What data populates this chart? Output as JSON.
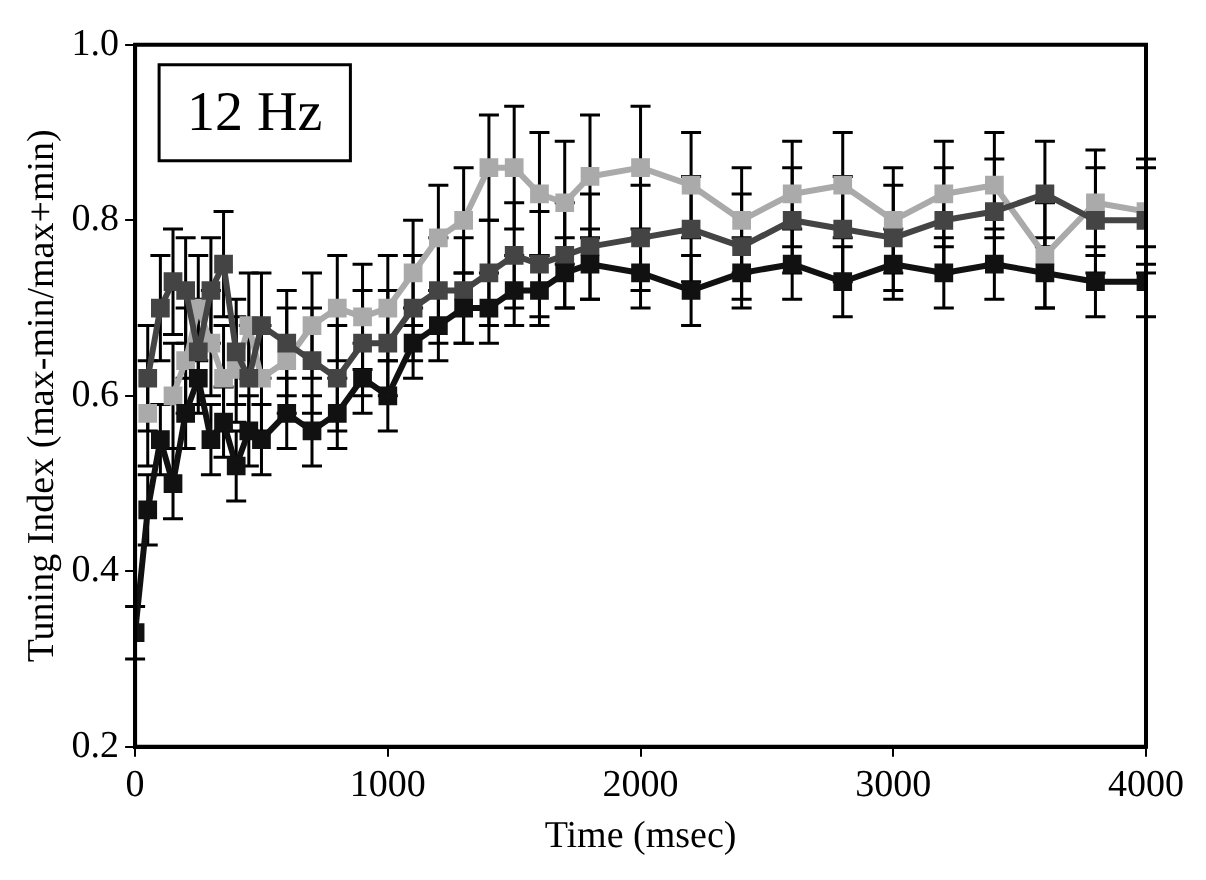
{
  "chart_data": {
    "type": "line",
    "xlabel": "Time (msec)",
    "ylabel": "Tuning Index (max-min/max+min)",
    "annotations": [
      "12 Hz"
    ],
    "x": [
      0,
      50,
      100,
      150,
      200,
      250,
      300,
      350,
      400,
      450,
      500,
      600,
      700,
      800,
      900,
      1000,
      1100,
      1200,
      1300,
      1400,
      1500,
      1600,
      1700,
      1800,
      2000,
      2200,
      2400,
      2600,
      2800,
      3000,
      3200,
      3400,
      3600,
      3800,
      4000
    ],
    "xlim": [
      0,
      4000
    ],
    "xticks": [
      0,
      1000,
      2000,
      3000,
      4000
    ],
    "ylim": [
      0.2,
      1.0
    ],
    "yticks": [
      0.2,
      0.4,
      0.6,
      0.8,
      {
        "value": 1.0,
        "label": "1.0"
      }
    ],
    "grid": false,
    "legend": false,
    "marker": "square",
    "line_style": "solid",
    "series": [
      {
        "color": "#111111",
        "values": [
          0.33,
          0.47,
          0.55,
          0.5,
          0.58,
          0.62,
          0.55,
          0.57,
          0.52,
          0.56,
          0.55,
          0.58,
          0.56,
          0.58,
          0.62,
          0.6,
          0.66,
          0.68,
          0.7,
          0.7,
          0.72,
          0.72,
          0.74,
          0.75,
          0.74,
          0.72,
          0.74,
          0.75,
          0.73,
          0.75,
          0.74,
          0.75,
          0.74,
          0.73,
          0.73
        ],
        "errors": [
          0.03,
          0.04,
          0.04,
          0.04,
          0.04,
          0.04,
          0.04,
          0.04,
          0.04,
          0.04,
          0.04,
          0.04,
          0.04,
          0.04,
          0.04,
          0.04,
          0.04,
          0.04,
          0.04,
          0.04,
          0.04,
          0.04,
          0.04,
          0.04,
          0.04,
          0.04,
          0.04,
          0.04,
          0.04,
          0.04,
          0.04,
          0.04,
          0.04,
          0.04,
          0.04
        ]
      },
      {
        "color": "#444444",
        "values": [
          null,
          0.62,
          0.7,
          0.73,
          0.72,
          0.65,
          0.72,
          0.75,
          0.65,
          0.62,
          0.68,
          0.66,
          0.64,
          0.62,
          0.66,
          0.66,
          0.7,
          0.72,
          0.72,
          0.74,
          0.76,
          0.75,
          0.76,
          0.77,
          0.78,
          0.79,
          0.77,
          0.8,
          0.79,
          0.78,
          0.8,
          0.81,
          0.83,
          0.8,
          0.8
        ],
        "errors": [
          null,
          0.06,
          0.06,
          0.06,
          0.06,
          0.06,
          0.06,
          0.06,
          0.06,
          0.06,
          0.06,
          0.06,
          0.06,
          0.06,
          0.06,
          0.06,
          0.06,
          0.06,
          0.06,
          0.06,
          0.06,
          0.06,
          0.06,
          0.06,
          0.06,
          0.06,
          0.06,
          0.06,
          0.06,
          0.06,
          0.06,
          0.06,
          0.06,
          0.06,
          0.06
        ]
      },
      {
        "color": "#aaaaaa",
        "values": [
          null,
          0.58,
          null,
          0.6,
          0.64,
          0.7,
          0.66,
          0.62,
          0.63,
          0.68,
          0.62,
          0.64,
          0.68,
          0.7,
          0.69,
          0.7,
          0.74,
          0.78,
          0.8,
          0.86,
          0.86,
          0.83,
          0.82,
          0.85,
          0.86,
          0.84,
          0.8,
          0.83,
          0.84,
          0.8,
          0.83,
          0.84,
          0.76,
          0.82,
          0.81
        ],
        "errors": [
          null,
          0.06,
          null,
          0.06,
          0.06,
          0.06,
          0.06,
          0.06,
          0.06,
          0.06,
          0.06,
          0.06,
          0.06,
          0.06,
          0.06,
          0.06,
          0.06,
          0.06,
          0.06,
          0.06,
          0.07,
          0.07,
          0.07,
          0.07,
          0.07,
          0.06,
          0.06,
          0.06,
          0.06,
          0.06,
          0.06,
          0.06,
          0.06,
          0.06,
          0.06
        ]
      }
    ]
  }
}
